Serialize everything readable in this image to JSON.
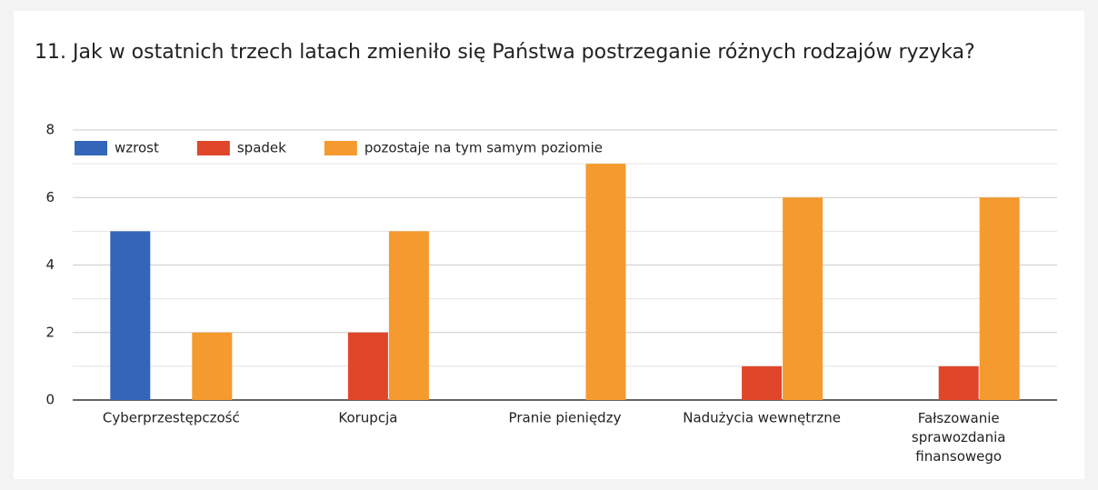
{
  "chart_data": {
    "type": "bar",
    "title": "11. Jak w ostatnich trzech latach zmieniło się Państwa postrzeganie różnych rodzajów ryzyka?",
    "categories": [
      "Cyberprzestępczość",
      "Korupcja",
      "Pranie pieniędzy",
      "Nadużycia wewnętrzne",
      "Fałszowanie sprawozdania finansowego"
    ],
    "series": [
      {
        "name": "wzrost",
        "color": "#3366b8",
        "values": [
          5,
          0,
          0,
          0,
          0
        ]
      },
      {
        "name": "spadek",
        "color": "#e0462a",
        "values": [
          0,
          2,
          0,
          1,
          1
        ]
      },
      {
        "name": "pozostaje na tym samym poziomie",
        "color": "#f59a2f",
        "values": [
          2,
          5,
          7,
          6,
          6
        ]
      }
    ],
    "ylim": [
      0,
      8
    ],
    "yticks": [
      0,
      2,
      4,
      6,
      8
    ],
    "grid": true,
    "legend": "top"
  }
}
